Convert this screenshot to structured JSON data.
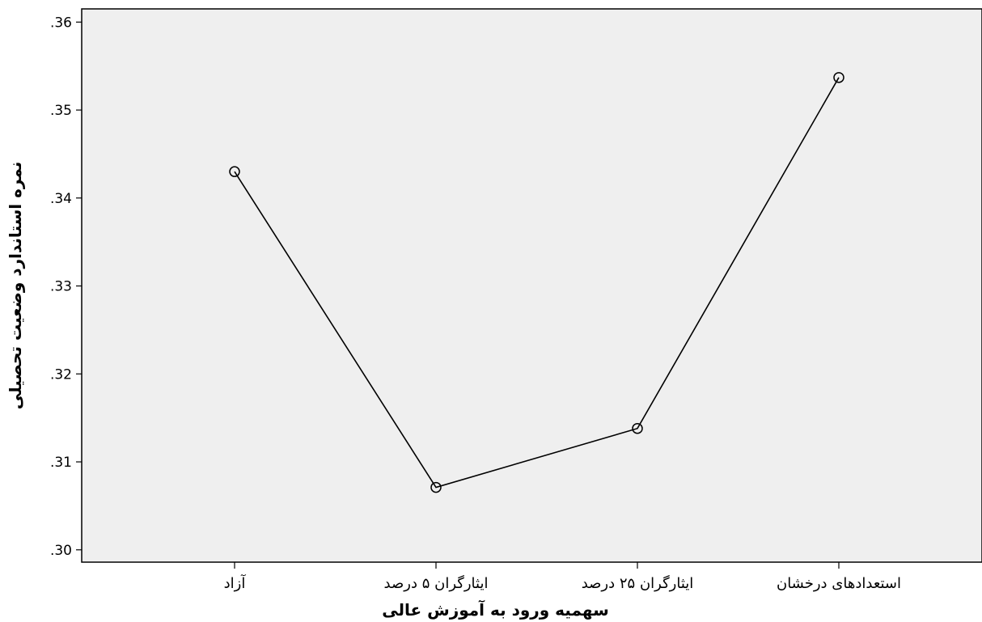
{
  "chart_data": {
    "type": "line",
    "title": "",
    "xlabel": "سهمیه ورود به آموزش عالی",
    "ylabel": "نمره استاندارد وضعیت تحصیلی",
    "categories": [
      "آزاد",
      "ایثارگران ۵ درصد",
      "ایثارگران ۲۵ درصد",
      "استعدادهای درخشان"
    ],
    "series": [
      {
        "values": [
          0.343,
          0.3071,
          0.3138,
          0.3537
        ]
      }
    ],
    "ylim": [
      0.2986,
      0.3615
    ],
    "yticks": [
      0.3,
      0.31,
      0.32,
      0.33,
      0.34,
      0.35,
      0.36
    ],
    "ytick_labels": [
      ".30",
      ".31",
      ".32",
      ".33",
      ".34",
      ".35",
      ".36"
    ],
    "grid": false,
    "marker": "open-circle",
    "colors": {
      "plot_background": "#efefef",
      "line": "#000000",
      "axis": "#000000"
    }
  }
}
